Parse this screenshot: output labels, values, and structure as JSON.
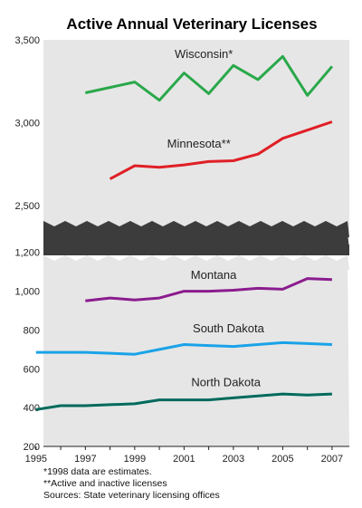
{
  "chart_data": {
    "title": "Active Annual Veterinary Licenses",
    "type": "line",
    "x_ticks": [
      "1995",
      "1997",
      "1999",
      "2001",
      "2003",
      "2005",
      "2007"
    ],
    "xlim": [
      1995,
      2007
    ],
    "grid": false,
    "panels": [
      {
        "ylim": [
          2250,
          3500
        ],
        "y_ticks": [
          "3,500",
          "3,000",
          "2,500"
        ],
        "y_tick_values": [
          3500,
          3000,
          2500
        ],
        "series": [
          {
            "name": "Wisconsin*",
            "color": "#2aa84a",
            "x": [
              1997,
              1999,
              2000,
              2001,
              2002,
              2003,
              2004,
              2005,
              2006,
              2007
            ],
            "values": [
              3180,
              3245,
              3135,
              3300,
              3175,
              3345,
              3260,
              3400,
              3165,
              3340
            ]
          },
          {
            "name": "Minnesota**",
            "color": "#e01f26",
            "x": [
              1998,
              1999,
              2000,
              2001,
              2002,
              2003,
              2004,
              2005,
              2006,
              2007
            ],
            "values": [
              2660,
              2740,
              2730,
              2745,
              2765,
              2770,
              2810,
              2905,
              2955,
              3005
            ]
          }
        ]
      },
      {
        "ylim": [
          200,
          1250
        ],
        "y_ticks": [
          "1,200",
          "1,000",
          "800",
          "600",
          "400",
          "200"
        ],
        "y_tick_values": [
          1200,
          1000,
          800,
          600,
          400,
          200
        ],
        "series": [
          {
            "name": "Montana",
            "color": "#8b1c8e",
            "x": [
              1997,
              1998,
              1999,
              2000,
              2001,
              2002,
              2003,
              2004,
              2005,
              2006,
              2007
            ],
            "values": [
              950,
              965,
              955,
              965,
              1000,
              1000,
              1005,
              1015,
              1010,
              1065,
              1060
            ]
          },
          {
            "name": "South Dakota",
            "color": "#1aa3e8",
            "x": [
              1995,
              1996,
              1997,
              1998,
              1999,
              2000,
              2001,
              2002,
              2003,
              2004,
              2005,
              2006,
              2007
            ],
            "values": [
              685,
              685,
              685,
              680,
              675,
              700,
              725,
              720,
              715,
              725,
              735,
              730,
              725
            ]
          },
          {
            "name": "North Dakota",
            "color": "#006a5c",
            "x": [
              1995,
              1996,
              1997,
              1998,
              1999,
              2000,
              2001,
              2002,
              2003,
              2004,
              2005,
              2006,
              2007
            ],
            "values": [
              390,
              410,
              410,
              415,
              420,
              440,
              440,
              440,
              450,
              460,
              470,
              465,
              470
            ]
          }
        ]
      }
    ]
  },
  "footnotes": [
    "*1998 data are estimates.",
    "**Active and inactive licenses",
    "Sources: State veterinary licensing offices"
  ]
}
